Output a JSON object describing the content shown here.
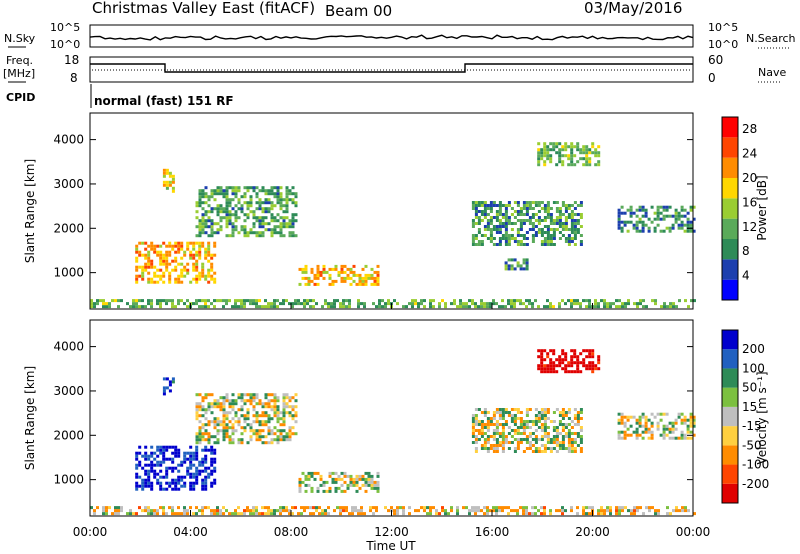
{
  "header": {
    "title": "Christmas Valley East (fitACF)",
    "beam": "Beam 00",
    "date": "03/May/2016"
  },
  "status_panels": {
    "nsky_label": "N.Sky",
    "nsky_ticks": [
      "10^5",
      "10^0"
    ],
    "nsearch_label": "N.Search",
    "nsearch_ticks": [
      "10^5",
      "10^0"
    ],
    "freq_label": "Freq.",
    "freq_unit": "[MHz]",
    "freq_ticks": [
      "18",
      "8"
    ],
    "nave_label": "Nave",
    "nave_ticks": [
      "60",
      "0"
    ],
    "cpid_label": "CPID",
    "cpid_text": "normal (fast) 151 RF"
  },
  "colors": {
    "power_scale": [
      "#0000ff",
      "#1c3fae",
      "#2e8b57",
      "#5aaa5a",
      "#9acd32",
      "#ffd700",
      "#ff8c00",
      "#ff4500",
      "#ff0000"
    ],
    "velocity_scale": [
      "#0000cd",
      "#2060c0",
      "#2e8b57",
      "#7cc040",
      "#c0c0c0",
      "#ffd040",
      "#ff8c00",
      "#ff4500",
      "#e00000"
    ],
    "ground_scatter": "#bfbfbf"
  },
  "chart_data": [
    {
      "type": "heatmap",
      "name": "power",
      "xlabel": "",
      "ylabel": "Slant Range [km]",
      "x_unit": "hours UT",
      "xlim": [
        0,
        24
      ],
      "ylim": [
        180,
        4600
      ],
      "y_ticks": [
        "1000",
        "2000",
        "3000",
        "4000"
      ],
      "colorbar": {
        "label": "Power [dB]",
        "ticks": [
          "4",
          "8",
          "12",
          "16",
          "20",
          "24",
          "28"
        ],
        "range": [
          0,
          30
        ]
      },
      "patches": [
        {
          "t0": 1.8,
          "t1": 5.0,
          "r0": 750,
          "r1": 1650,
          "level": 20
        },
        {
          "t0": 2.9,
          "t1": 3.3,
          "r0": 2800,
          "r1": 3300,
          "level": 16
        },
        {
          "t0": 4.2,
          "t1": 8.2,
          "r0": 1800,
          "r1": 2900,
          "level": 11
        },
        {
          "t0": 8.3,
          "t1": 11.5,
          "r0": 700,
          "r1": 1150,
          "level": 19
        },
        {
          "t0": 15.2,
          "t1": 19.5,
          "r0": 1600,
          "r1": 2600,
          "level": 10
        },
        {
          "t0": 16.5,
          "t1": 17.4,
          "r0": 1050,
          "r1": 1300,
          "level": 9
        },
        {
          "t0": 17.8,
          "t1": 20.2,
          "r0": 3400,
          "r1": 3900,
          "level": 13
        },
        {
          "t0": 21.0,
          "t1": 24.0,
          "r0": 1900,
          "r1": 2500,
          "level": 9
        },
        {
          "t0": 0.0,
          "t1": 24.0,
          "r0": 200,
          "r1": 400,
          "level": 12
        }
      ]
    },
    {
      "type": "heatmap",
      "name": "velocity",
      "xlabel": "Time UT",
      "ylabel": "Slant Range [km]",
      "x_unit": "hours UT",
      "xlim": [
        0,
        24
      ],
      "ylim": [
        180,
        4600
      ],
      "x_ticks": [
        "00:00",
        "04:00",
        "08:00",
        "12:00",
        "16:00",
        "20:00",
        "00:00"
      ],
      "y_ticks": [
        "1000",
        "2000",
        "3000",
        "4000"
      ],
      "colorbar": {
        "label": "Velocity [m s⁻¹]",
        "ticks": [
          "200",
          "100",
          "50",
          "15",
          "-15",
          "-50",
          "-100",
          "-200"
        ],
        "range": [
          -250,
          250
        ]
      },
      "patches": [
        {
          "t0": 1.8,
          "t1": 5.0,
          "r0": 750,
          "r1": 1700,
          "level": 160
        },
        {
          "t0": 2.9,
          "t1": 3.3,
          "r0": 2900,
          "r1": 3300,
          "level": 120
        },
        {
          "t0": 4.2,
          "t1": 8.2,
          "r0": 1800,
          "r1": 2900,
          "level": 0
        },
        {
          "t0": 8.3,
          "t1": 11.5,
          "r0": 700,
          "r1": 1150,
          "level": 0
        },
        {
          "t0": 15.2,
          "t1": 19.5,
          "r0": 1600,
          "r1": 2600,
          "level": 0
        },
        {
          "t0": 17.8,
          "t1": 20.2,
          "r0": 3400,
          "r1": 3900,
          "level": -200
        },
        {
          "t0": 21.0,
          "t1": 24.0,
          "r0": 1900,
          "r1": 2500,
          "level": 0
        },
        {
          "t0": 0.0,
          "t1": 24.0,
          "r0": 200,
          "r1": 400,
          "level": -20
        }
      ]
    }
  ]
}
